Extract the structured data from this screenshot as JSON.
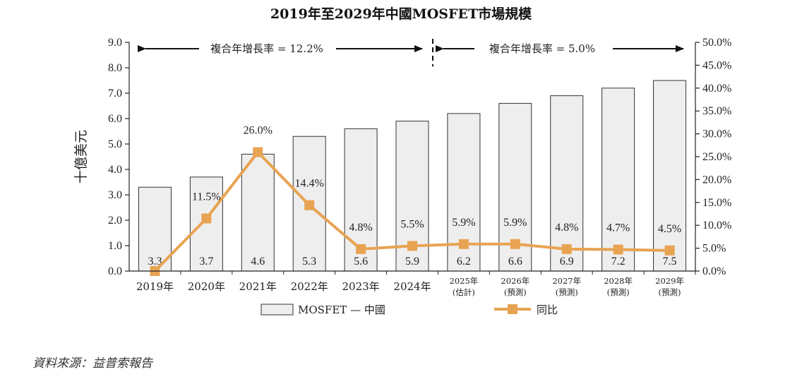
{
  "chart_data": {
    "type": "bar",
    "title": "2019年至2029年中國MOSFET市場規模",
    "ylabel": "十億美元",
    "ylim": [
      0,
      9
    ],
    "y_ticks": [
      "0.0",
      "1.0",
      "2.0",
      "3.0",
      "4.0",
      "5.0",
      "6.0",
      "7.0",
      "8.0",
      "9.0"
    ],
    "y2lim": [
      0,
      50
    ],
    "y2_ticks": [
      "0.0%",
      "5.0%",
      "10.0%",
      "15.0%",
      "20.0%",
      "25.0%",
      "30.0%",
      "35.0%",
      "40.0%",
      "45.0%",
      "50.0%"
    ],
    "categories": [
      {
        "year": "2019年",
        "sub": ""
      },
      {
        "year": "2020年",
        "sub": ""
      },
      {
        "year": "2021年",
        "sub": ""
      },
      {
        "year": "2022年",
        "sub": ""
      },
      {
        "year": "2023年",
        "sub": ""
      },
      {
        "year": "2024年",
        "sub": ""
      },
      {
        "year": "2025年",
        "sub": "(估計)"
      },
      {
        "year": "2026年",
        "sub": "(預測)"
      },
      {
        "year": "2027年",
        "sub": "(預測)"
      },
      {
        "year": "2028年",
        "sub": "(預測)"
      },
      {
        "year": "2029年",
        "sub": "(預測)"
      }
    ],
    "series": [
      {
        "name": "MOSFET — 中國",
        "type": "bar",
        "axis": "left",
        "values": [
          3.3,
          3.7,
          4.6,
          5.3,
          5.6,
          5.9,
          6.2,
          6.6,
          6.9,
          7.2,
          7.5
        ],
        "labels": [
          "3.3",
          "3.7",
          "4.6",
          "5.3",
          "5.6",
          "5.9",
          "6.2",
          "6.6",
          "6.9",
          "7.2",
          "7.5"
        ]
      },
      {
        "name": "同比",
        "type": "line",
        "axis": "right",
        "values": [
          0,
          11.5,
          26.0,
          14.4,
          4.8,
          5.5,
          5.9,
          5.9,
          4.8,
          4.7,
          4.5
        ],
        "labels": [
          "",
          "11.5%",
          "26.0%",
          "14.4%",
          "4.8%",
          "5.5%",
          "5.9%",
          "5.9%",
          "4.8%",
          "4.7%",
          "4.5%"
        ]
      }
    ],
    "annotations": [
      {
        "text": "複合年增長率 = 12.2%",
        "span": [
          "2019年",
          "2024年"
        ]
      },
      {
        "text": "複合年增長率 = 5.0%",
        "span": [
          "2025年",
          "2029年"
        ]
      }
    ],
    "colors": {
      "bar_fill": "#eeeeee",
      "bar_stroke": "#333333",
      "line": "#e8a352",
      "axis": "#222222"
    }
  },
  "source": "資料來源：益普索報告"
}
